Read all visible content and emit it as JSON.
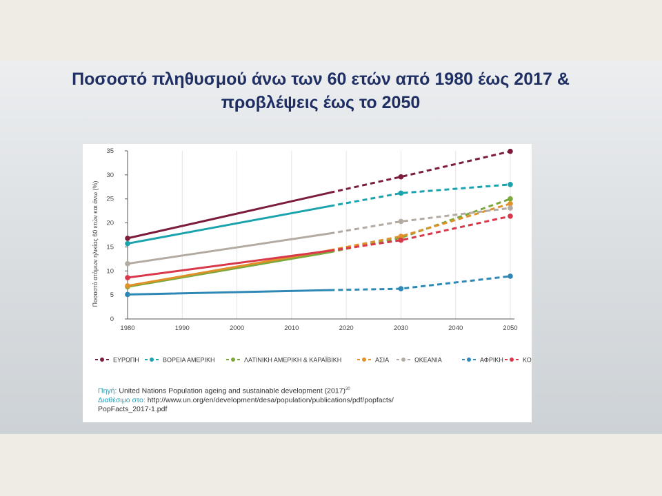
{
  "title": {
    "line1": "Ποσοστό πληθυσμού άνω των 60 ετών από 1980 έως 2017 &",
    "line2": "προβλέψεις έως το 2050"
  },
  "source": {
    "source_label": "Πηγή:",
    "source_text": "United Nations Population ageing and sustainable development (2017)",
    "source_ref": "30",
    "available_label": "Διαθέσιμο στο:",
    "available_text": "http://www.un.org/en/development/desa/population/publications/pdf/popfacts/",
    "available_text2": "PopFacts_2017-1.pdf"
  },
  "chart_data": {
    "type": "line",
    "ylabel": "Ποσοστό ατόμων ηλικίας 60 ετών και άνω (%)",
    "xlabel": "",
    "xlim": [
      1980,
      2050
    ],
    "ylim": [
      0,
      35
    ],
    "x_ticks": [
      "1980",
      "1990",
      "2000",
      "2010",
      "2020",
      "2030",
      "2040",
      "2050"
    ],
    "y_ticks": [
      "0",
      "5",
      "10",
      "15",
      "20",
      "25",
      "30",
      "35"
    ],
    "grid": "vertical",
    "legend_position": "bottom",
    "observed_until": 2017,
    "series": [
      {
        "name": "ΕΥΡΩΠΗ",
        "color": "#7b1c3a",
        "points": [
          [
            1980,
            16.8
          ],
          [
            2017,
            26.3
          ],
          [
            2030,
            29.6
          ],
          [
            2050,
            34.9
          ]
        ]
      },
      {
        "name": "ΒΟΡΕΙΑ ΑΜΕΡΙΚΗ",
        "color": "#1aa3ad",
        "points": [
          [
            1980,
            15.7
          ],
          [
            2017,
            23.5
          ],
          [
            2030,
            26.2
          ],
          [
            2050,
            28.0
          ]
        ]
      },
      {
        "name": "ΛΑΤΙΝΙΚΗ ΑΜΕΡΙΚΗ & ΚΑΡΑΪΒΙΚΗ",
        "color": "#7ba83a",
        "points": [
          [
            1980,
            6.7
          ],
          [
            2017,
            13.9
          ],
          [
            2030,
            16.9
          ],
          [
            2050,
            25.0
          ]
        ]
      },
      {
        "name": "ΑΣΙΑ",
        "color": "#e0912a",
        "points": [
          [
            1980,
            6.9
          ],
          [
            2017,
            14.3
          ],
          [
            2030,
            17.2
          ],
          [
            2050,
            24.0
          ]
        ]
      },
      {
        "name": "ΩΚΕΑΝΙΑ",
        "color": "#b3aba2",
        "points": [
          [
            1980,
            11.5
          ],
          [
            2017,
            17.8
          ],
          [
            2030,
            20.3
          ],
          [
            2050,
            23.1
          ]
        ]
      },
      {
        "name": "ΑΦΡΙΚΗ",
        "color": "#2e88b5",
        "points": [
          [
            1980,
            5.1
          ],
          [
            2017,
            6.0
          ],
          [
            2030,
            6.3
          ],
          [
            2050,
            8.9
          ]
        ]
      },
      {
        "name": "ΚΟΣΜΟΣ",
        "color": "#d8384a",
        "points": [
          [
            1980,
            8.6
          ],
          [
            2017,
            14.2
          ],
          [
            2030,
            16.4
          ],
          [
            2050,
            21.4
          ]
        ]
      }
    ]
  }
}
